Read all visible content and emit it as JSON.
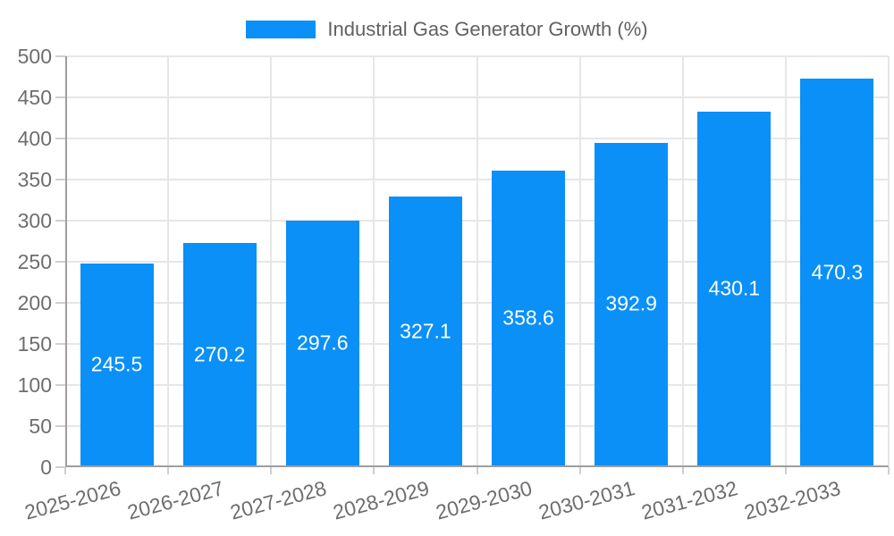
{
  "chart_data": {
    "type": "bar",
    "title": "Industrial Gas Generator Growth (%)",
    "legend": {
      "position": "top",
      "entries": [
        "Industrial Gas Generator Growth (%)"
      ]
    },
    "categories": [
      "2025-2026",
      "2026-2027",
      "2027-2028",
      "2028-2029",
      "2029-2030",
      "2030-2031",
      "2031-2032",
      "2032-2033"
    ],
    "series": [
      {
        "name": "Industrial Gas Generator Growth (%)",
        "values": [
          245.5,
          270.2,
          297.6,
          327.1,
          358.6,
          392.9,
          430.1,
          470.3
        ]
      }
    ],
    "value_labels": [
      "245.5",
      "270.2",
      "297.6",
      "327.1",
      "358.6",
      "392.9",
      "430.1",
      "470.3"
    ],
    "xlabel": "",
    "ylabel": "",
    "ylim": [
      0,
      500
    ],
    "ytick_interval": 50,
    "yticks": [
      0,
      50,
      100,
      150,
      200,
      250,
      300,
      350,
      400,
      450,
      500
    ],
    "grid": true,
    "x_label_rotation_deg": -15,
    "colors": {
      "bar": "#0A90F7",
      "axis_line": "#9E9E9E",
      "gridline": "#E6E6E6",
      "tick_mark": "#CFCFCF",
      "tick_label": "#6E6E6E",
      "legend_text": "#616161",
      "value_label": "#FFFFFF",
      "background": "#FFFFFF"
    }
  }
}
